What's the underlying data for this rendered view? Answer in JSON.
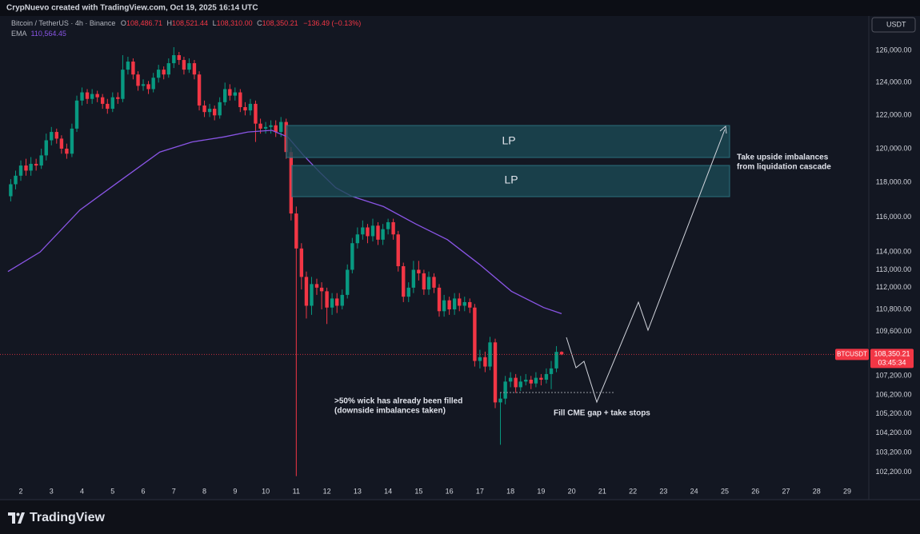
{
  "header": {
    "credit": "CrypNuevo created with TradingView.com, Oct 19, 2025 16:14 UTC"
  },
  "footer": {
    "brand": "TradingView"
  },
  "chart_data": {
    "type": "candlestick",
    "title": "Bitcoin / TetherUS · 4h · Binance",
    "ohlc_header": [
      {
        "key": "O",
        "value": 108486.71,
        "label": "108,486.71"
      },
      {
        "key": "H",
        "value": 108521.44,
        "label": "108,521.44"
      },
      {
        "key": "L",
        "value": 108310,
        "label": "108,310.00"
      },
      {
        "key": "C",
        "value": 108350.21,
        "label": "108,350.21"
      }
    ],
    "change": "−136.49 (−0.13%)",
    "currency": "USDT",
    "up_color": "#089981",
    "down_color": "#f23645",
    "log_scale": true,
    "grid": false,
    "xlim": [
      1.32,
      29.68
    ],
    "xticks": [
      2,
      3,
      4,
      5,
      6,
      7,
      8,
      9,
      10,
      11,
      12,
      13,
      14,
      15,
      16,
      17,
      18,
      19,
      20,
      21,
      22,
      23,
      24,
      25,
      26,
      27,
      28,
      29
    ],
    "ylim": [
      101620,
      128270
    ],
    "yticks": [
      {
        "value": 126000,
        "label": "126,000.00"
      },
      {
        "value": 124000,
        "label": "124,000.00"
      },
      {
        "value": 122000,
        "label": "122,000.00"
      },
      {
        "value": 120000,
        "label": "120,000.00"
      },
      {
        "value": 118000,
        "label": "118,000.00"
      },
      {
        "value": 116000,
        "label": "116,000.00"
      },
      {
        "value": 114000,
        "label": "114,000.00"
      },
      {
        "value": 113000,
        "label": "113,000.00"
      },
      {
        "value": 112000,
        "label": "112,000.00"
      },
      {
        "value": 110800,
        "label": "110,800.00"
      },
      {
        "value": 109600,
        "label": "109,600.00"
      },
      {
        "value": 107200,
        "label": "107,200.00"
      },
      {
        "value": 106200,
        "label": "106,200.00"
      },
      {
        "value": 105200,
        "label": "105,200.00"
      },
      {
        "value": 104200,
        "label": "104,200.00"
      },
      {
        "value": 103200,
        "label": "103,200.00"
      },
      {
        "value": 102200,
        "label": "102,200.00"
      }
    ],
    "x": [
      1.67,
      1.83,
      2,
      2.17,
      2.33,
      2.5,
      2.67,
      2.83,
      3,
      3.17,
      3.33,
      3.5,
      3.67,
      3.83,
      4,
      4.17,
      4.33,
      4.5,
      4.67,
      4.83,
      5,
      5.17,
      5.33,
      5.5,
      5.67,
      5.83,
      6,
      6.17,
      6.33,
      6.5,
      6.67,
      6.83,
      7,
      7.17,
      7.33,
      7.5,
      7.67,
      7.83,
      8,
      8.17,
      8.33,
      8.5,
      8.67,
      8.83,
      9,
      9.17,
      9.33,
      9.5,
      9.67,
      9.83,
      10,
      10.17,
      10.33,
      10.5,
      10.67,
      10.83,
      11,
      11.17,
      11.33,
      11.5,
      11.67,
      11.83,
      12,
      12.17,
      12.33,
      12.5,
      12.67,
      12.83,
      13,
      13.17,
      13.33,
      13.5,
      13.67,
      13.83,
      14,
      14.17,
      14.33,
      14.5,
      14.67,
      14.83,
      15,
      15.17,
      15.33,
      15.5,
      15.67,
      15.83,
      16,
      16.17,
      16.33,
      16.5,
      16.67,
      16.83,
      17,
      17.17,
      17.33,
      17.5,
      17.67,
      17.83,
      18,
      18.17,
      18.33,
      18.5,
      18.67,
      18.83,
      19,
      19.17,
      19.33,
      19.5,
      19.67
    ],
    "open": [
      117200,
      117900,
      118400,
      119000,
      118700,
      119100,
      119000,
      119600,
      120500,
      121000,
      120600,
      120000,
      119700,
      121200,
      122900,
      123400,
      123000,
      123300,
      123100,
      122700,
      122400,
      123100,
      123000,
      124800,
      125300,
      124500,
      123800,
      123900,
      123600,
      124300,
      124800,
      124500,
      125200,
      125700,
      125400,
      124800,
      125200,
      124500,
      122600,
      122200,
      122400,
      122000,
      122800,
      123600,
      123200,
      123400,
      122500,
      122300,
      122700,
      121500,
      121200,
      121300,
      121400,
      121000,
      121600,
      119800,
      116200,
      114200,
      112600,
      111000,
      112200,
      112000,
      111800,
      110900,
      111400,
      111000,
      111600,
      113000,
      114500,
      115000,
      115400,
      114900,
      115500,
      114700,
      115300,
      115700,
      115000,
      113200,
      111500,
      112000,
      113000,
      112800,
      111900,
      112600,
      112000,
      110700,
      111300,
      110800,
      111400,
      111000,
      111200,
      110900,
      108000,
      108200,
      107700,
      109000,
      105800,
      106000,
      106900,
      107100,
      106600,
      106900,
      107000,
      106800,
      107100,
      107000,
      107300,
      107600,
      108486.71
    ],
    "high": [
      118200,
      118700,
      119300,
      119400,
      119500,
      119400,
      120000,
      120900,
      121300,
      121200,
      120800,
      120300,
      121500,
      123200,
      123700,
      123600,
      123600,
      123500,
      123300,
      123000,
      123400,
      123400,
      125700,
      125600,
      125500,
      124700,
      124200,
      124100,
      124600,
      125100,
      125000,
      125500,
      126200,
      125900,
      125600,
      125500,
      125400,
      124700,
      122900,
      122700,
      122600,
      123100,
      124000,
      123900,
      123700,
      123600,
      122800,
      123000,
      122900,
      121800,
      121600,
      121700,
      121700,
      121900,
      121800,
      120100,
      116600,
      114500,
      112900,
      112600,
      112500,
      112300,
      112000,
      111700,
      111700,
      111900,
      113300,
      114800,
      115400,
      115800,
      115600,
      115900,
      115700,
      115600,
      115900,
      115900,
      115200,
      113400,
      112300,
      113500,
      113500,
      113000,
      112900,
      112800,
      112200,
      111600,
      111500,
      111700,
      111700,
      111500,
      111400,
      111100,
      108600,
      108500,
      109300,
      109200,
      106300,
      107200,
      107400,
      107300,
      107200,
      107300,
      107200,
      107400,
      107300,
      107600,
      108000,
      108800,
      108521.44
    ],
    "low": [
      116900,
      117600,
      118100,
      118400,
      118400,
      118700,
      118800,
      119300,
      120200,
      120300,
      119700,
      119400,
      119500,
      121000,
      122600,
      122700,
      122700,
      122800,
      122400,
      122100,
      122200,
      122700,
      122800,
      124500,
      124200,
      123500,
      123500,
      123300,
      123400,
      124000,
      124200,
      124300,
      124900,
      125100,
      124500,
      124600,
      124200,
      122300,
      121900,
      121900,
      121700,
      121800,
      122600,
      122900,
      122900,
      122200,
      122000,
      122000,
      120400,
      120900,
      120900,
      120900,
      120700,
      120700,
      119400,
      115800,
      102000,
      111900,
      110300,
      110500,
      111600,
      110800,
      110000,
      110500,
      110600,
      110800,
      111400,
      112800,
      114200,
      114700,
      114500,
      114600,
      114400,
      114400,
      115000,
      114700,
      112900,
      111200,
      111200,
      111700,
      112400,
      111600,
      111600,
      111700,
      110400,
      110400,
      110500,
      110500,
      110700,
      110700,
      110600,
      107700,
      107600,
      107400,
      107500,
      105500,
      103600,
      105700,
      106600,
      106300,
      106400,
      106700,
      106500,
      106600,
      106700,
      106800,
      106500,
      107400,
      108310
    ],
    "close": [
      117900,
      118400,
      119000,
      118700,
      119100,
      119000,
      119600,
      120500,
      121000,
      120600,
      120000,
      119700,
      121200,
      122900,
      123400,
      123000,
      123300,
      123100,
      122700,
      122400,
      123100,
      123000,
      124800,
      125300,
      124500,
      123800,
      123900,
      123600,
      124300,
      124800,
      124500,
      125200,
      125700,
      125400,
      124800,
      125200,
      124500,
      122600,
      122200,
      122400,
      122000,
      122800,
      123600,
      123200,
      123400,
      122500,
      122300,
      122700,
      121500,
      121200,
      121300,
      121400,
      121000,
      121600,
      119800,
      116200,
      114200,
      112600,
      111000,
      112200,
      112000,
      111800,
      110900,
      111400,
      111000,
      111600,
      113000,
      114500,
      115000,
      115400,
      114900,
      115500,
      114700,
      115300,
      115700,
      115000,
      113200,
      111500,
      112000,
      113000,
      112800,
      111900,
      112600,
      112000,
      110700,
      111300,
      110800,
      111400,
      111000,
      111200,
      110900,
      108000,
      108200,
      107700,
      109000,
      105800,
      106000,
      106900,
      107100,
      106600,
      106900,
      107000,
      106800,
      107100,
      107000,
      107300,
      107600,
      108486.71,
      108350.21
    ],
    "ema": {
      "name": "EMA",
      "color": "#8a55e6",
      "value": 110564.45,
      "label": "110,564.45",
      "x": [
        1.58,
        2.63,
        3.93,
        5.24,
        6.54,
        7.59,
        8.63,
        9.42,
        10.2,
        10.72,
        11.24,
        11.77,
        12.29,
        12.81,
        13.85,
        14.9,
        15.94,
        16.99,
        18.03,
        19.08,
        19.67
      ],
      "values": [
        112900,
        114000,
        116400,
        118100,
        119800,
        120400,
        120700,
        121000,
        121100,
        120700,
        119600,
        118600,
        117700,
        117200,
        116600,
        115600,
        114700,
        113300,
        111800,
        110900,
        110564.45
      ]
    },
    "last_price": {
      "value": 108350.21,
      "label": "108,350.21",
      "symbol": "BTCUSDT",
      "countdown": "03:45:34"
    },
    "zones": [
      {
        "label": "LP"
      },
      {
        "label": "LP"
      }
    ],
    "annotations": [
      {
        "lines": [
          "Take upside imbalances",
          "from liquidation cascade"
        ]
      },
      {
        "lines": [
          ">50% wick has already been filled",
          "(downside imbalances taken)"
        ]
      },
      {
        "lines": [
          "Fill CME gap + take stops"
        ]
      }
    ]
  }
}
